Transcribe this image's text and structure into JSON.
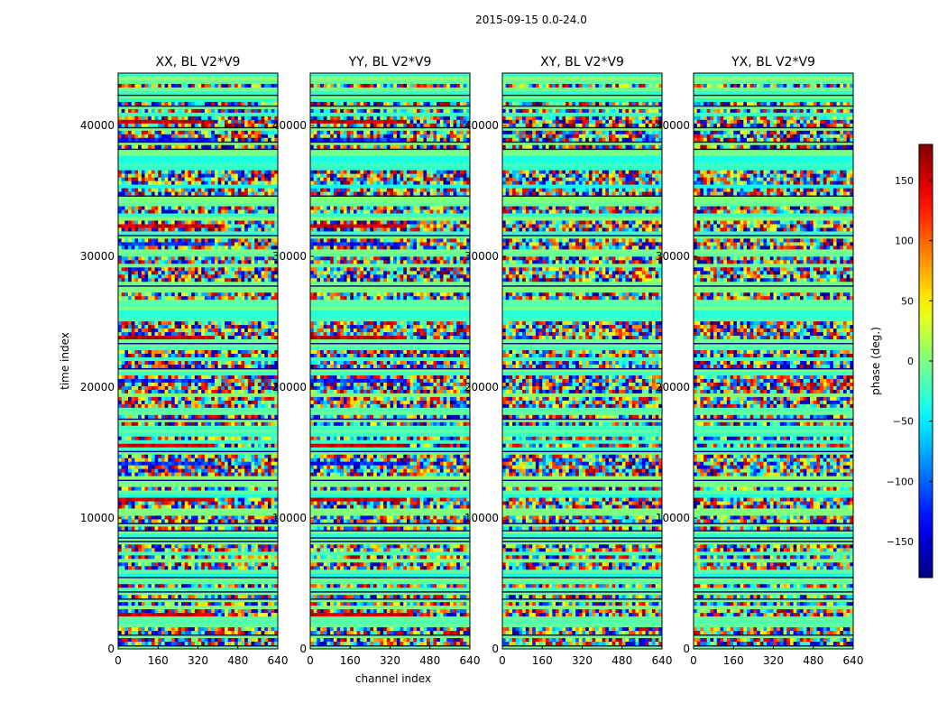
{
  "figure": {
    "suptitle": "2015-09-15 0.0-24.0"
  },
  "chart_data": {
    "type": "heatmap",
    "xlabel": "channel index",
    "ylabel": "time index",
    "xlim": [
      0,
      640
    ],
    "ylim": [
      0,
      44000
    ],
    "xticks": [
      "0",
      "160",
      "320",
      "480",
      "640"
    ],
    "xtick_values": [
      0,
      160,
      320,
      480,
      640
    ],
    "yticks": [
      "0",
      "10000",
      "20000",
      "30000",
      "40000"
    ],
    "ytick_values": [
      0,
      10000,
      20000,
      30000,
      40000
    ],
    "panels": [
      {
        "title": "XX, BL V2*V9"
      },
      {
        "title": "YY, BL V2*V9"
      },
      {
        "title": "XY, BL V2*V9"
      },
      {
        "title": "YX, BL V2*V9"
      }
    ],
    "colorbar": {
      "label": "phase (deg.)",
      "range": [
        -180,
        180
      ],
      "ticks": [
        "150",
        "100",
        "50",
        "0",
        "−50",
        "−100",
        "−150"
      ],
      "tick_values": [
        150,
        100,
        50,
        0,
        -50,
        -100,
        -150
      ],
      "colormap": "jet"
    }
  }
}
